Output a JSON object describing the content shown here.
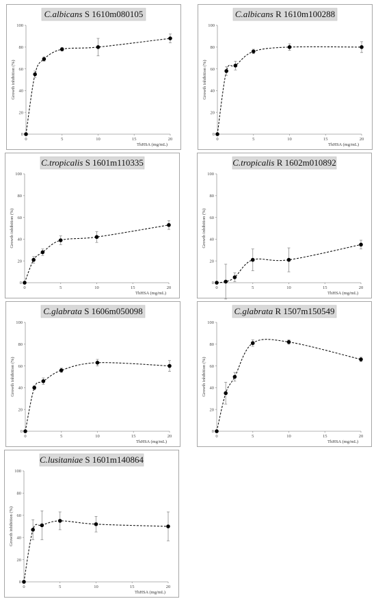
{
  "chart_data": [
    {
      "type": "line",
      "title_species": "C.albicans",
      "title_rest": " S 1610m080105",
      "xlabel": "ThHSA (mg/mL)",
      "ylabel": "Growth inhibition (%)",
      "xlim": [
        0,
        20
      ],
      "ylim": [
        0,
        100
      ],
      "xticks": [
        0,
        5,
        10,
        15,
        20
      ],
      "yticks": [
        0,
        20,
        40,
        60,
        80,
        100
      ],
      "x": [
        0,
        1.25,
        2.5,
        5,
        10,
        20
      ],
      "y": [
        0,
        55,
        69,
        78,
        80,
        88
      ],
      "err": [
        0,
        3,
        2,
        1.5,
        8,
        4
      ],
      "grid": false
    },
    {
      "type": "line",
      "title_species": "C.albicans",
      "title_rest": " R 1610m100288",
      "xlabel": "ThHSA (mg/mL)",
      "ylabel": "Growth inhibition (%)",
      "xlim": [
        0,
        20
      ],
      "ylim": [
        0,
        100
      ],
      "xticks": [
        0,
        5,
        10,
        15,
        20
      ],
      "yticks": [
        0,
        20,
        40,
        60,
        80,
        100
      ],
      "x": [
        0,
        1.25,
        2.5,
        5,
        10,
        20
      ],
      "y": [
        0,
        58,
        63,
        76,
        80,
        80
      ],
      "err": [
        0,
        4,
        4,
        2,
        3,
        5
      ],
      "grid": false
    },
    {
      "type": "line",
      "title_species": "C.tropicalis",
      "title_rest": " S 1601m110335",
      "xlabel": "ThHSA (mg/mL)",
      "ylabel": "Growth inhibition (%)",
      "xlim": [
        0,
        20
      ],
      "ylim": [
        0,
        100
      ],
      "xticks": [
        0,
        5,
        10,
        15,
        20
      ],
      "yticks": [
        0,
        20,
        40,
        60,
        80,
        100
      ],
      "x": [
        0,
        1.25,
        2.5,
        5,
        10,
        20
      ],
      "y": [
        0,
        21,
        28,
        39,
        42,
        53
      ],
      "err": [
        0,
        3,
        3,
        4,
        5,
        4
      ],
      "grid": false
    },
    {
      "type": "line",
      "title_species": "C.tropicalis",
      "title_rest": " R 1602m010892",
      "xlabel": "ThHSA (mg/mL)",
      "ylabel": "Growth inhibition (%)",
      "xlim": [
        0,
        20
      ],
      "ylim": [
        0,
        100
      ],
      "xticks": [
        0,
        5,
        10,
        15,
        20
      ],
      "yticks": [
        0,
        20,
        40,
        60,
        80,
        100
      ],
      "x": [
        0,
        1.25,
        2.5,
        5,
        10,
        20
      ],
      "y": [
        0,
        1,
        5,
        21,
        21,
        35
      ],
      "err": [
        0,
        16,
        4,
        10,
        11,
        4
      ],
      "grid": false
    },
    {
      "type": "line",
      "title_species": "C.glabrata",
      "title_rest": " S 1606m050098",
      "xlabel": "ThHSA (mg/mL)",
      "ylabel": "Growth inhibition (%)",
      "xlim": [
        0,
        20
      ],
      "ylim": [
        0,
        100
      ],
      "xticks": [
        0,
        5,
        10,
        15,
        20
      ],
      "yticks": [
        0,
        20,
        40,
        60,
        80,
        100
      ],
      "x": [
        0,
        1.25,
        2.5,
        5,
        10,
        20
      ],
      "y": [
        0,
        40,
        46,
        56,
        63,
        60
      ],
      "err": [
        0,
        2,
        3,
        2,
        3,
        5
      ],
      "grid": false
    },
    {
      "type": "line",
      "title_species": "C.glabrata",
      "title_rest": " R 1507m150549",
      "xlabel": "ThHSA (mg/mL)",
      "ylabel": "Growth inhibition (%)",
      "xlim": [
        0,
        20
      ],
      "ylim": [
        0,
        100
      ],
      "xticks": [
        0,
        5,
        10,
        15,
        20
      ],
      "yticks": [
        0,
        20,
        40,
        60,
        80,
        100
      ],
      "x": [
        0,
        1.25,
        2.5,
        5,
        10,
        20
      ],
      "y": [
        0,
        35,
        50,
        81,
        82,
        66
      ],
      "err": [
        0,
        10,
        4,
        3,
        2,
        2
      ],
      "grid": false
    },
    {
      "type": "line",
      "title_species": "C.lusitaniae",
      "title_rest": " S 1601m140864",
      "xlabel": "ThHSA (mg/mL)",
      "ylabel": "Growth inhibition (%)",
      "xlim": [
        0,
        20
      ],
      "ylim": [
        0,
        100
      ],
      "xticks": [
        0,
        5,
        10,
        15,
        20
      ],
      "yticks": [
        0,
        20,
        40,
        60,
        80,
        100
      ],
      "x": [
        0,
        1.25,
        2.5,
        5,
        10,
        20
      ],
      "y": [
        0,
        47,
        51,
        55,
        52,
        50
      ],
      "err": [
        0,
        9,
        13,
        8,
        7,
        13
      ],
      "grid": false
    }
  ]
}
